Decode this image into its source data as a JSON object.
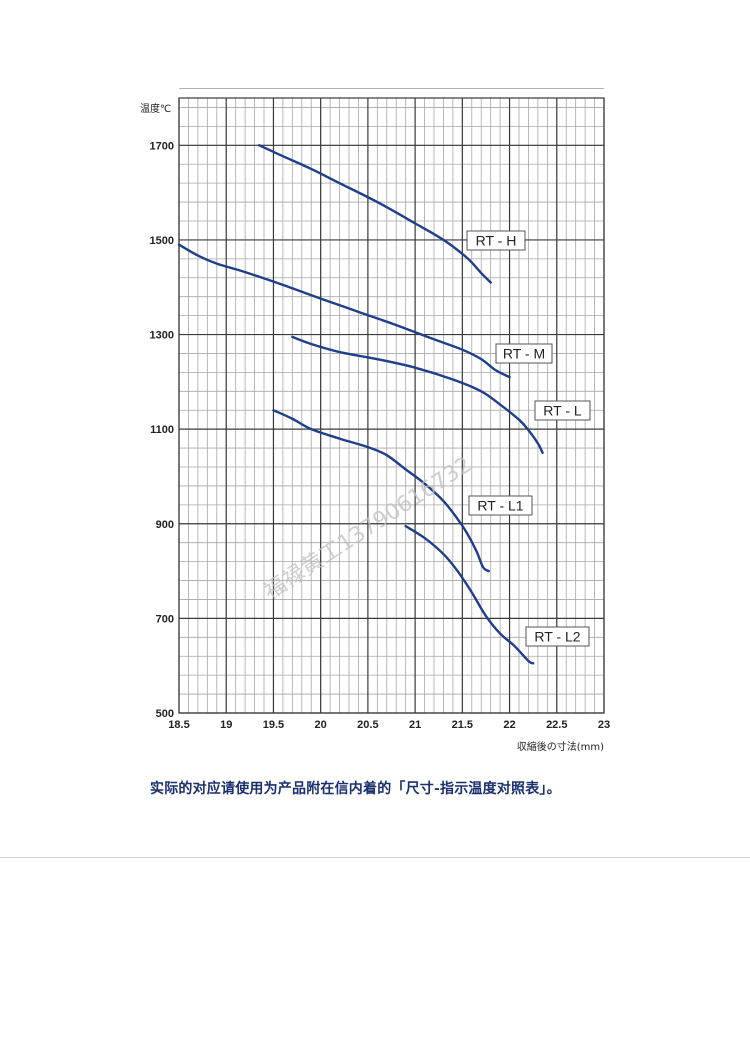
{
  "chart_data": {
    "type": "line",
    "ylabel": "温度℃",
    "xlabel": "収縮後の寸法(mm)",
    "xlim": [
      18.5,
      23
    ],
    "ylim": [
      500,
      1800
    ],
    "xticks": [
      18.5,
      19,
      19.5,
      20,
      20.5,
      21,
      21.5,
      22,
      22.5,
      23
    ],
    "xtick_labels": [
      "18.5",
      "19",
      "19.5",
      "20",
      "20.5",
      "21",
      "21.5",
      "22",
      "22.5",
      "23"
    ],
    "yticks": [
      500,
      700,
      900,
      1100,
      1300,
      1500,
      1700
    ],
    "ytick_labels": [
      "500",
      "700",
      "900",
      "1100",
      "1300",
      "1500",
      "1700"
    ],
    "minor_grid": {
      "x_step": 0.1,
      "y_step": 40
    },
    "grid": true,
    "series_color": "#1f3f8c",
    "series": [
      {
        "name": "RT-H",
        "points": [
          [
            19.35,
            1700
          ],
          [
            19.6,
            1677
          ],
          [
            19.9,
            1650
          ],
          [
            20.2,
            1620
          ],
          [
            20.6,
            1580
          ],
          [
            21.0,
            1535
          ],
          [
            21.3,
            1500
          ],
          [
            21.55,
            1462
          ],
          [
            21.7,
            1430
          ],
          [
            21.8,
            1410
          ]
        ]
      },
      {
        "name": "RT-M",
        "points": [
          [
            18.5,
            1490
          ],
          [
            18.7,
            1467
          ],
          [
            18.9,
            1450
          ],
          [
            19.2,
            1432
          ],
          [
            19.6,
            1405
          ],
          [
            20.0,
            1376
          ],
          [
            20.4,
            1348
          ],
          [
            20.8,
            1320
          ],
          [
            21.2,
            1290
          ],
          [
            21.5,
            1268
          ],
          [
            21.7,
            1248
          ],
          [
            21.85,
            1225
          ],
          [
            22.0,
            1210
          ]
        ]
      },
      {
        "name": "RT-L",
        "points": [
          [
            19.7,
            1295
          ],
          [
            19.9,
            1280
          ],
          [
            20.2,
            1263
          ],
          [
            20.6,
            1248
          ],
          [
            21.0,
            1230
          ],
          [
            21.4,
            1205
          ],
          [
            21.7,
            1180
          ],
          [
            21.9,
            1152
          ],
          [
            22.1,
            1120
          ],
          [
            22.2,
            1098
          ],
          [
            22.3,
            1070
          ],
          [
            22.35,
            1050
          ]
        ]
      },
      {
        "name": "RT-L1",
        "points": [
          [
            19.5,
            1140
          ],
          [
            19.7,
            1122
          ],
          [
            19.9,
            1100
          ],
          [
            20.2,
            1080
          ],
          [
            20.5,
            1062
          ],
          [
            20.7,
            1045
          ],
          [
            20.9,
            1015
          ],
          [
            21.1,
            985
          ],
          [
            21.3,
            948
          ],
          [
            21.45,
            910
          ],
          [
            21.55,
            880
          ],
          [
            21.65,
            842
          ],
          [
            21.72,
            808
          ],
          [
            21.78,
            800
          ]
        ]
      },
      {
        "name": "RT-L2",
        "points": [
          [
            20.9,
            895
          ],
          [
            21.1,
            870
          ],
          [
            21.3,
            836
          ],
          [
            21.45,
            800
          ],
          [
            21.6,
            755
          ],
          [
            21.75,
            705
          ],
          [
            21.9,
            668
          ],
          [
            22.05,
            642
          ],
          [
            22.2,
            610
          ],
          [
            22.25,
            605
          ]
        ]
      }
    ]
  },
  "watermark_text": "福禄黄工13790616732",
  "caption": "实际的对应请使用为产品附在信内着的「尺寸-指示温度对照表」。"
}
